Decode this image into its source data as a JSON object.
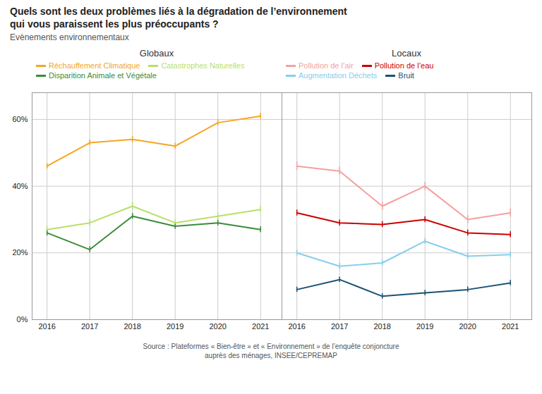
{
  "title": "Quels sont les deux problèmes liés à la dégradation de l’environnement\n qui vous paraissent les plus préoccupants ?",
  "subtitle": "Evènements environnementaux",
  "source": "Source : Plateformes « Bien-être » et « Environnement » de l’enquête conjoncture\nauprès des ménages, INSEE/CEPREMAP",
  "chart_data": [
    {
      "type": "line",
      "title": "Globaux",
      "x": [
        2016,
        2017,
        2018,
        2019,
        2020,
        2021
      ],
      "xlim": [
        2015.65,
        2021.5
      ],
      "xticks": [
        2016,
        2017,
        2018,
        2019,
        2020,
        2021
      ],
      "ylim": [
        0.0,
        0.68
      ],
      "yticks": [
        {
          "value": 0.0,
          "label": "0%"
        },
        {
          "value": 0.2,
          "label": "20%"
        },
        {
          "value": 0.4,
          "label": "40%"
        },
        {
          "value": 0.6,
          "label": "60%"
        }
      ],
      "grid": true,
      "series": [
        {
          "name": "Réchauffement Climatique",
          "color": "#f5a623",
          "values": [
            0.46,
            0.53,
            0.54,
            0.52,
            0.59,
            0.61
          ],
          "errors": [
            0.008,
            0.008,
            0.009,
            0.009,
            0.009,
            0.009
          ]
        },
        {
          "name": "Catastrophes Naturelles",
          "color": "#b8e067",
          "values": [
            0.27,
            0.29,
            0.34,
            0.29,
            0.31,
            0.33
          ],
          "errors": [
            0.009,
            0.009,
            0.012,
            0.009,
            0.009,
            0.009
          ]
        },
        {
          "name": "Disparition Animale et Végétale",
          "color": "#3a8c3a",
          "values": [
            0.26,
            0.21,
            0.31,
            0.28,
            0.29,
            0.27
          ],
          "errors": [
            0.009,
            0.009,
            0.009,
            0.009,
            0.009,
            0.009
          ]
        }
      ]
    },
    {
      "type": "line",
      "title": "Locaux",
      "x": [
        2016,
        2017,
        2018,
        2019,
        2020,
        2021
      ],
      "xlim": [
        2015.65,
        2021.5
      ],
      "xticks": [
        2016,
        2017,
        2018,
        2019,
        2020,
        2021
      ],
      "ylim": [
        0.0,
        0.68
      ],
      "yticks": [
        0.0,
        0.2,
        0.4,
        0.6
      ],
      "grid": true,
      "tick_labels": "x",
      "series": [
        {
          "name": "Pollution de l’air",
          "color": "#f4a0a0",
          "values": [
            0.46,
            0.445,
            0.34,
            0.4,
            0.3,
            0.32
          ],
          "errors": [
            0.012,
            0.012,
            0.012,
            0.012,
            0.012,
            0.012
          ]
        },
        {
          "name": "Pollution de l’eau",
          "color": "#cc0000",
          "values": [
            0.32,
            0.29,
            0.285,
            0.3,
            0.26,
            0.255
          ],
          "errors": [
            0.009,
            0.009,
            0.009,
            0.009,
            0.009,
            0.009
          ]
        },
        {
          "name": "Augmentation Déchets",
          "color": "#87ceeb",
          "values": [
            0.2,
            0.16,
            0.17,
            0.235,
            0.19,
            0.195
          ],
          "errors": [
            0.009,
            0.009,
            0.009,
            0.009,
            0.009,
            0.009
          ]
        },
        {
          "name": "Bruit",
          "color": "#1a5276",
          "values": [
            0.09,
            0.12,
            0.07,
            0.08,
            0.09,
            0.11
          ],
          "errors": [
            0.008,
            0.008,
            0.008,
            0.008,
            0.008,
            0.008
          ]
        }
      ]
    }
  ]
}
